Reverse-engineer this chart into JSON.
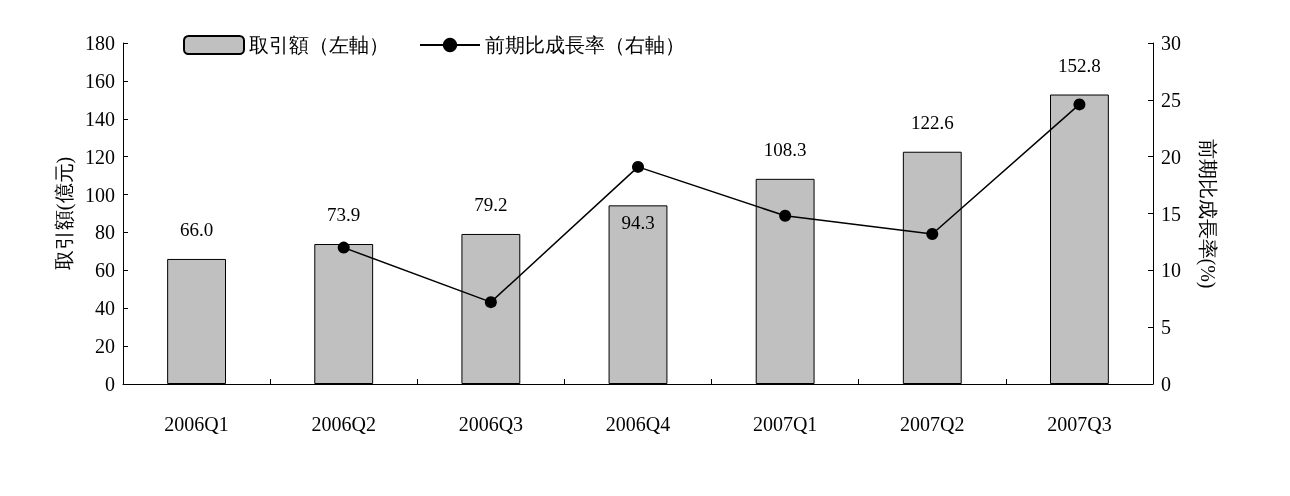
{
  "chart_data": {
    "type": "bar",
    "categories": [
      "2006Q1",
      "2006Q2",
      "2006Q3",
      "2006Q4",
      "2007Q1",
      "2007Q2",
      "2007Q3"
    ],
    "ylabel": "取引額(億元)",
    "y2label": "前期比成長率(%)",
    "ylim": [
      0,
      180
    ],
    "yticks": [
      0,
      20,
      40,
      60,
      80,
      100,
      120,
      140,
      160,
      180
    ],
    "y2lim": [
      0,
      30
    ],
    "y2ticks": [
      0,
      5,
      10,
      15,
      20,
      25,
      30
    ],
    "series": [
      {
        "name": "取引額（左軸）",
        "color": "#c0c0c0",
        "values": [
          66.0,
          73.9,
          79.2,
          94.3,
          108.3,
          122.6,
          152.8
        ],
        "value_labels": [
          "66.0",
          "73.9",
          "79.2",
          "94.3",
          "108.3",
          "122.6",
          "152.8"
        ]
      },
      {
        "name": "前期比成長率（右軸）",
        "type": "line",
        "axis": "y2",
        "color": "#000000",
        "marker": "circle",
        "values": [
          null,
          12.0,
          7.2,
          19.1,
          14.8,
          13.2,
          24.6
        ]
      }
    ],
    "legend": "top",
    "grid": false
  }
}
